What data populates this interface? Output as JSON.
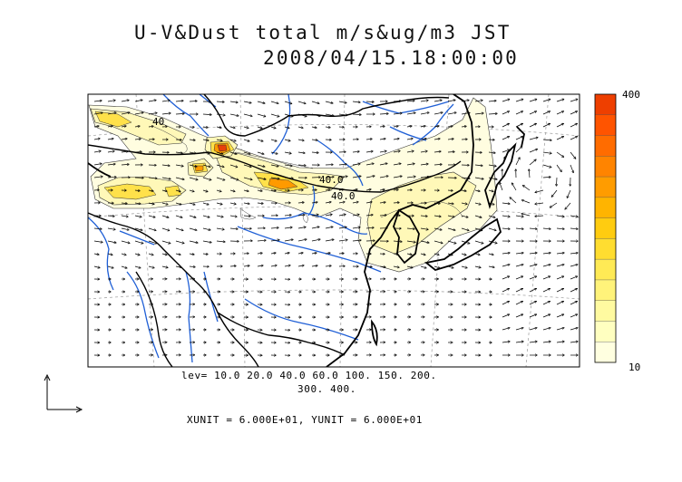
{
  "title": {
    "line1": "U-V&Dust total m/s&ug/m3 JST",
    "line2": "2008/04/15.18:00:00"
  },
  "levels": {
    "line1": "lev= 10.0 20.0 40.0 60.0 100. 150. 200.",
    "line2": "300. 400."
  },
  "units_text": "XUNIT = 6.000E+01, YUNIT = 6.000E+01",
  "colorbar": {
    "max_label": "400",
    "min_label": "10",
    "colors": [
      "#ffffe0",
      "#ffffc0",
      "#fffaa0",
      "#fff37a",
      "#ffea55",
      "#ffdd30",
      "#ffcc10",
      "#ffb400",
      "#ff9c00",
      "#ff8400",
      "#ff6c00",
      "#ff5400",
      "#ee3f00"
    ]
  },
  "contour_labels": [
    "40",
    "40.0",
    "40.0"
  ],
  "colors": {
    "river": "#1f5fd6",
    "coast": "#000000"
  }
}
